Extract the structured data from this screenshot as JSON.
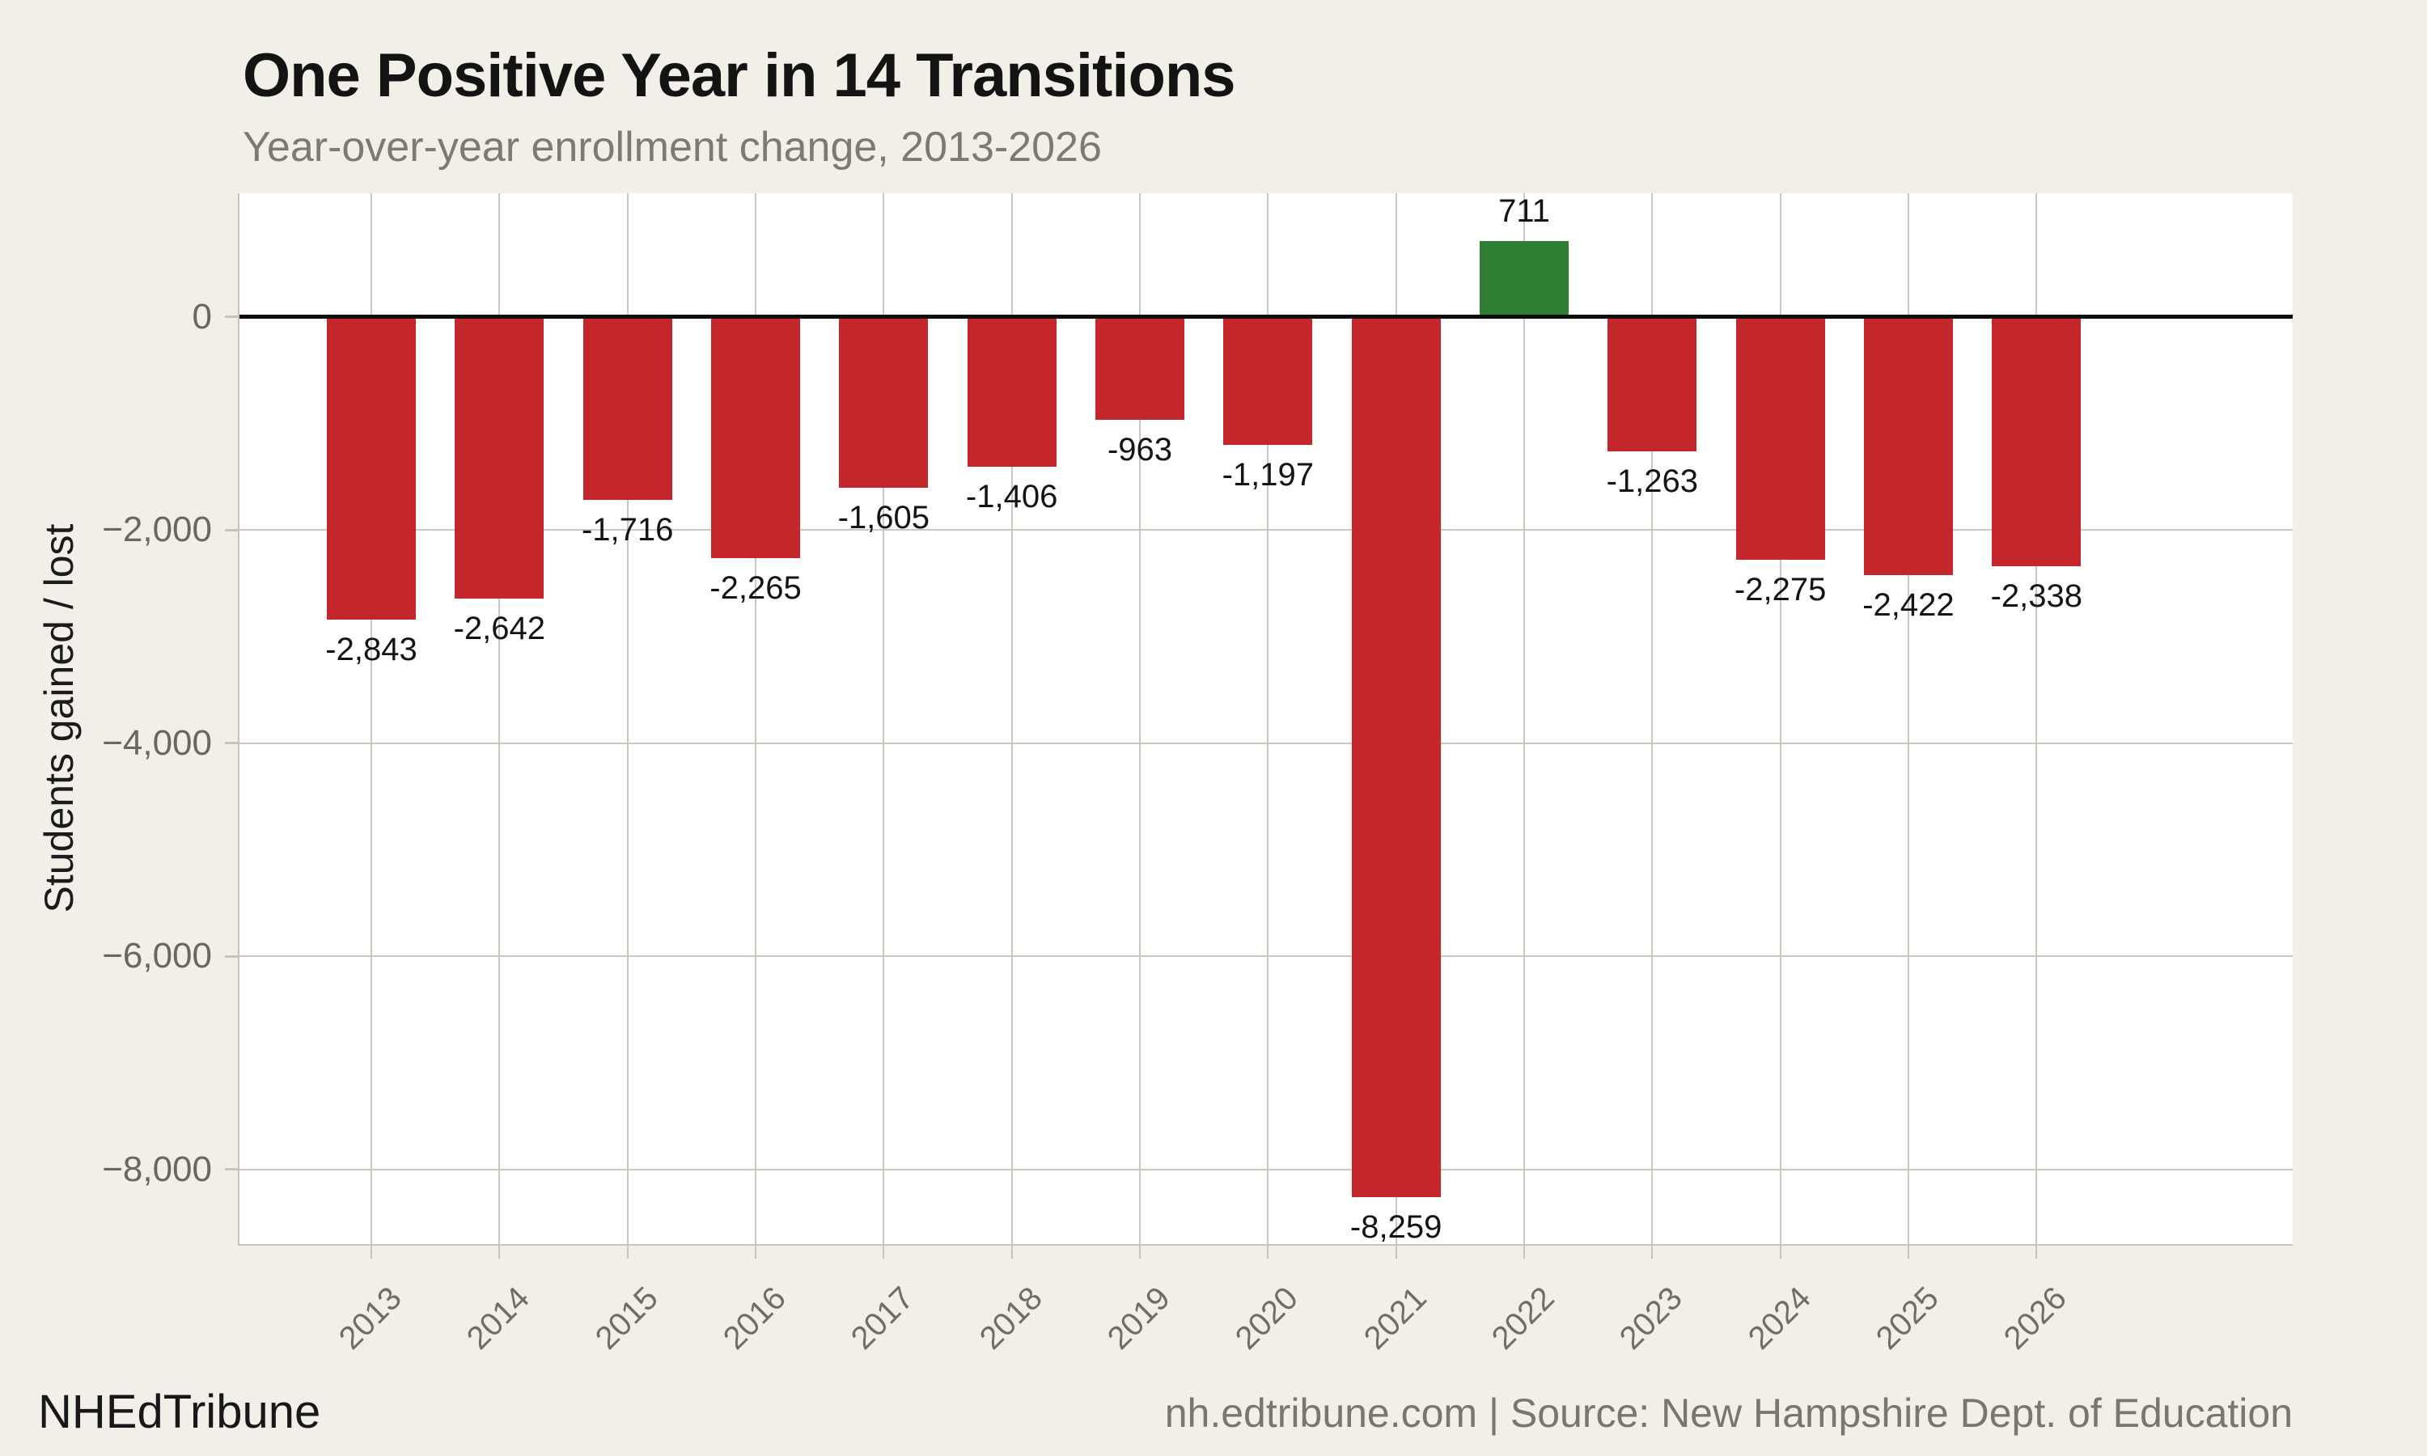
{
  "chart_data": {
    "type": "bar",
    "title": "One Positive Year in 14 Transitions",
    "subtitle": "Year-over-year enrollment change, 2013-2026",
    "ylabel": "Students gained / lost",
    "xlabel": "",
    "categories": [
      "2013",
      "2014",
      "2015",
      "2016",
      "2017",
      "2018",
      "2019",
      "2020",
      "2021",
      "2022",
      "2023",
      "2024",
      "2025",
      "2026"
    ],
    "values": [
      -2843,
      -2642,
      -1716,
      -2265,
      -1605,
      -1406,
      -963,
      -1197,
      -8259,
      711,
      -1263,
      -2275,
      -2422,
      -2338
    ],
    "bar_labels": [
      "-2,843",
      "-2,642",
      "-1,716",
      "-2,265",
      "-1,605",
      "-1,406",
      "-963",
      "-1,197",
      "-8,259",
      "711",
      "-1,263",
      "-2,275",
      "-2,422",
      "-2,338"
    ],
    "y_ticks": [
      {
        "value": 0,
        "label": "0"
      },
      {
        "value": -2000,
        "label": "−2,000"
      },
      {
        "value": -4000,
        "label": "−4,000"
      },
      {
        "value": -6000,
        "label": "−6,000"
      },
      {
        "value": -8000,
        "label": "−8,000"
      }
    ],
    "ylim": [
      -8700,
      1160
    ],
    "grid": true,
    "legend": false,
    "colors": {
      "negative_bar": "#c4272b",
      "positive_bar": "#2e7d33",
      "background": "#f2efe8",
      "plot_background": "#ffffff",
      "gridline": "#cdc8bf",
      "zero_line": "#0d0d0d"
    }
  },
  "footer": {
    "brand": "NHEdTribune",
    "source": "nh.edtribune.com | Source: New Hampshire Dept. of Education"
  }
}
